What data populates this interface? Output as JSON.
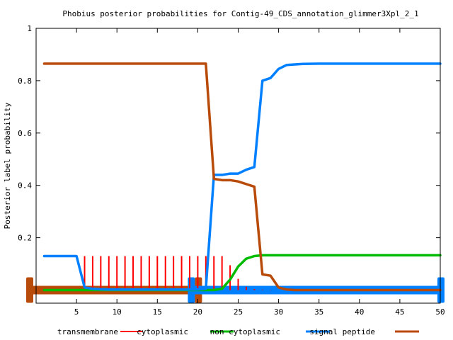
{
  "chart_data": {
    "type": "line",
    "title": "Phobius posterior probabilities for Contig-49_CDS_annotation_glimmer3Xpl_2_1",
    "xlabel": "",
    "ylabel": "Posterior label probability",
    "xlim": [
      0,
      50
    ],
    "ylim": [
      -0.05,
      1
    ],
    "x_ticks": [
      5,
      10,
      15,
      20,
      25,
      30,
      35,
      40,
      45,
      50
    ],
    "y_ticks": [
      0.2,
      0.4,
      0.6,
      0.8,
      1
    ],
    "y_tick_labels": [
      "0.2",
      "0.4",
      "0.6",
      "0.8",
      "1"
    ],
    "grid": false,
    "legend_position": "bottom",
    "series": [
      {
        "name": "transmembrane",
        "style": "impulse",
        "color": "#ff0000",
        "x": [
          6,
          7,
          8,
          9,
          10,
          11,
          12,
          13,
          14,
          15,
          16,
          17,
          18,
          19,
          20,
          21,
          22,
          23,
          24,
          25,
          26,
          27,
          28,
          29
        ],
        "values": [
          0.13,
          0.13,
          0.13,
          0.13,
          0.13,
          0.13,
          0.13,
          0.13,
          0.13,
          0.13,
          0.13,
          0.13,
          0.13,
          0.13,
          0.13,
          0.13,
          0.13,
          0.13,
          0.095,
          0.043,
          0.013,
          0.004,
          0.002,
          0.001
        ]
      },
      {
        "name": "cytoplasmic",
        "style": "line",
        "color": "#00bb00",
        "x": [
          1,
          20,
          21,
          22,
          23,
          24,
          25,
          26,
          27,
          28,
          29,
          30,
          31,
          35,
          40,
          45,
          50
        ],
        "values": [
          0.0,
          0.0,
          0.0,
          0.0,
          0.005,
          0.04,
          0.09,
          0.12,
          0.13,
          0.133,
          0.133,
          0.133,
          0.133,
          0.133,
          0.133,
          0.133,
          0.133
        ]
      },
      {
        "name": "non cytoplasmic",
        "style": "line",
        "color": "#0080ff",
        "x": [
          1,
          5,
          6,
          7,
          8,
          9,
          10,
          15,
          20,
          21,
          22,
          23,
          24,
          25,
          26,
          27,
          28,
          29,
          30,
          31,
          32,
          33,
          35,
          40,
          45,
          50
        ],
        "values": [
          0.13,
          0.13,
          0.01,
          0.005,
          0.003,
          0.002,
          0.002,
          0.002,
          0.002,
          0.005,
          0.44,
          0.44,
          0.445,
          0.445,
          0.46,
          0.47,
          0.8,
          0.81,
          0.845,
          0.86,
          0.862,
          0.864,
          0.865,
          0.865,
          0.865,
          0.865
        ]
      },
      {
        "name": "signal peptide",
        "style": "line",
        "color": "#b84a0a",
        "x": [
          1,
          5,
          10,
          15,
          20,
          21,
          22,
          23,
          24,
          25,
          26,
          27,
          28,
          29,
          30,
          31,
          32,
          35,
          40,
          45,
          50
        ],
        "values": [
          0.865,
          0.865,
          0.865,
          0.865,
          0.865,
          0.865,
          0.425,
          0.42,
          0.42,
          0.415,
          0.405,
          0.395,
          0.06,
          0.055,
          0.01,
          0.002,
          0.0,
          0.0,
          0.0,
          0.0,
          0.0
        ]
      }
    ],
    "topology_bars": [
      {
        "label": "signal peptide",
        "color": "#b84a0a",
        "x_start": 0,
        "x_end": 20
      },
      {
        "label": "non cytoplasmic",
        "color": "#0080ff",
        "x_start": 20,
        "x_end": 50
      }
    ]
  }
}
